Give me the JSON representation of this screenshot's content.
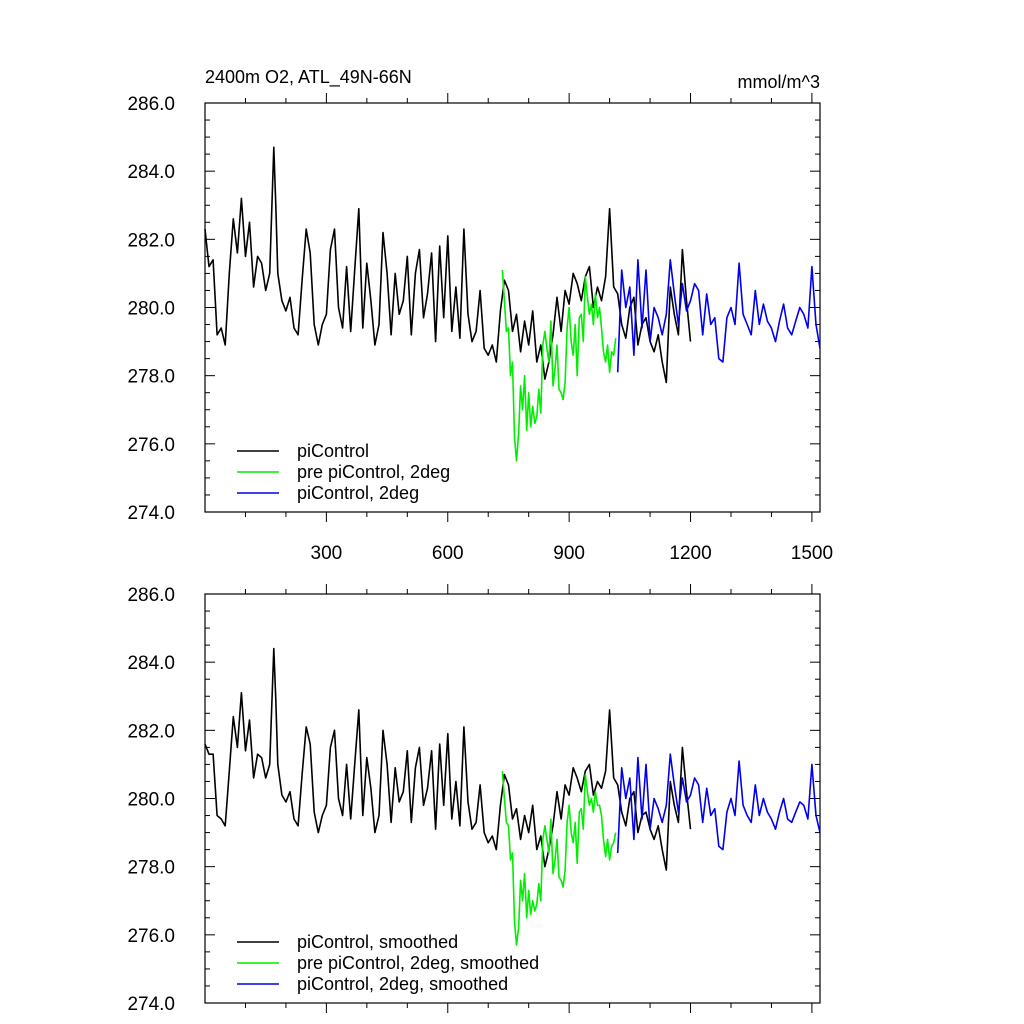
{
  "chart_data": [
    {
      "type": "line",
      "title": "2400m O2, ATL_49N-66N",
      "unit_label": "mmol/m^3",
      "xlabel": "",
      "ylabel": "",
      "xlim": [
        0,
        1520
      ],
      "ylim": [
        274,
        286
      ],
      "x_ticks": [
        300,
        600,
        900,
        1200,
        1500
      ],
      "x_tick_labels": [
        "300",
        "600",
        "900",
        "1200",
        "1500"
      ],
      "y_ticks": [
        274,
        276,
        278,
        280,
        282,
        284,
        286
      ],
      "y_tick_labels": [
        "274.0",
        "276.0",
        "278.0",
        "280.0",
        "282.0",
        "284.0",
        "286.0"
      ],
      "grid": false,
      "legend_position": "bottom-left",
      "series": [
        {
          "name": "piControl",
          "color": "#000000",
          "x": [
            0,
            10,
            20,
            30,
            40,
            50,
            60,
            70,
            80,
            90,
            100,
            110,
            120,
            130,
            140,
            150,
            160,
            170,
            175,
            180,
            190,
            200,
            210,
            220,
            230,
            240,
            250,
            260,
            270,
            280,
            290,
            300,
            310,
            320,
            330,
            340,
            350,
            360,
            370,
            380,
            390,
            400,
            410,
            420,
            430,
            440,
            450,
            460,
            470,
            480,
            490,
            500,
            510,
            520,
            530,
            540,
            550,
            560,
            570,
            580,
            590,
            600,
            610,
            620,
            630,
            640,
            650,
            660,
            670,
            680,
            690,
            700,
            710,
            720,
            730,
            740,
            750,
            760,
            770,
            780,
            790,
            800,
            810,
            820,
            830,
            840,
            850,
            860,
            870,
            880,
            890,
            900,
            910,
            920,
            930,
            940,
            950,
            960,
            970,
            980,
            990,
            1000,
            1010,
            1020,
            1030,
            1040,
            1050,
            1060,
            1070,
            1080,
            1090,
            1100,
            1110,
            1120,
            1130,
            1140,
            1150,
            1160,
            1170,
            1180,
            1190,
            1200
          ],
          "y": [
            282.3,
            281.2,
            281.4,
            279.2,
            279.4,
            278.9,
            281.0,
            282.6,
            281.6,
            283.2,
            281.5,
            282.5,
            280.6,
            281.5,
            281.3,
            280.5,
            281.0,
            284.7,
            283.0,
            281.0,
            280.2,
            279.9,
            280.3,
            279.4,
            279.2,
            280.8,
            282.3,
            281.6,
            279.5,
            278.9,
            279.5,
            279.8,
            281.7,
            282.3,
            280.0,
            279.4,
            281.2,
            279.3,
            281.1,
            282.9,
            279.4,
            281.3,
            280.2,
            278.9,
            279.5,
            282.2,
            281.0,
            279.2,
            281.0,
            279.8,
            280.2,
            281.5,
            279.2,
            281.0,
            281.7,
            279.7,
            280.4,
            281.6,
            279.0,
            281.8,
            279.7,
            282.1,
            279.3,
            280.6,
            279.1,
            282.3,
            279.8,
            279.0,
            279.3,
            280.5,
            278.8,
            278.6,
            278.9,
            278.4,
            279.9,
            280.8,
            280.5,
            279.3,
            279.8,
            278.7,
            279.6,
            278.9,
            279.9,
            278.4,
            278.9,
            277.9,
            278.4,
            279.2,
            280.3,
            279.3,
            280.5,
            280.1,
            281.0,
            280.7,
            280.2,
            280.9,
            281.2,
            280.0,
            280.6,
            280.2,
            280.9,
            282.9,
            280.6,
            280.4,
            279.5,
            279.1,
            280.0,
            280.3,
            278.9,
            279.5,
            279.7,
            279.0,
            278.7,
            279.2,
            278.4,
            277.8,
            280.6,
            279.8,
            279.2,
            281.7,
            280.2,
            279.0
          ],
          "legend_label": "piControl"
        },
        {
          "name": "pre piControl, 2deg",
          "color": "#00ee00",
          "x": [
            735,
            740,
            745,
            750,
            755,
            760,
            765,
            770,
            775,
            780,
            785,
            790,
            795,
            800,
            805,
            810,
            815,
            820,
            825,
            830,
            835,
            840,
            845,
            850,
            855,
            860,
            865,
            870,
            875,
            880,
            885,
            890,
            895,
            900,
            905,
            910,
            915,
            920,
            925,
            930,
            935,
            940,
            945,
            950,
            955,
            960,
            965,
            970,
            975,
            980,
            985,
            990,
            995,
            1000,
            1005,
            1010,
            1015
          ],
          "y": [
            281.1,
            280.2,
            279.3,
            279.4,
            278.0,
            278.4,
            276.2,
            275.5,
            276.3,
            277.7,
            277.0,
            278.0,
            276.4,
            277.5,
            276.5,
            277.1,
            276.6,
            276.8,
            277.6,
            276.9,
            278.9,
            279.3,
            278.8,
            278.4,
            279.6,
            277.7,
            278.2,
            278.9,
            277.6,
            277.5,
            277.3,
            277.8,
            279.4,
            280.0,
            279.0,
            278.6,
            279.5,
            278.0,
            279.7,
            279.8,
            279.0,
            280.9,
            280.3,
            279.8,
            280.1,
            279.5,
            280.4,
            279.7,
            280.0,
            279.4,
            278.7,
            278.4,
            278.9,
            278.1,
            278.7,
            278.6,
            279.1
          ],
          "legend_label": "pre piControl, 2deg"
        },
        {
          "name": "piControl, 2deg",
          "color": "#0000ee",
          "x": [
            1020,
            1030,
            1040,
            1050,
            1060,
            1070,
            1080,
            1090,
            1100,
            1110,
            1120,
            1130,
            1140,
            1150,
            1160,
            1170,
            1180,
            1190,
            1200,
            1210,
            1220,
            1230,
            1240,
            1250,
            1260,
            1270,
            1280,
            1290,
            1300,
            1310,
            1320,
            1330,
            1340,
            1350,
            1360,
            1370,
            1380,
            1390,
            1400,
            1410,
            1420,
            1430,
            1440,
            1450,
            1460,
            1470,
            1480,
            1490,
            1500,
            1510,
            1520
          ],
          "y": [
            278.1,
            281.1,
            280.0,
            280.6,
            278.6,
            281.4,
            279.4,
            281.1,
            279.0,
            280.0,
            279.7,
            279.2,
            279.8,
            281.4,
            280.4,
            279.5,
            280.7,
            279.9,
            280.2,
            280.7,
            280.5,
            279.2,
            280.4,
            279.5,
            279.7,
            278.5,
            278.4,
            279.7,
            280.0,
            279.5,
            281.3,
            279.8,
            279.5,
            279.2,
            280.5,
            279.5,
            280.1,
            279.6,
            279.4,
            279.0,
            279.6,
            280.1,
            279.4,
            279.2,
            279.6,
            280.0,
            279.8,
            279.4,
            281.2,
            279.5,
            278.8
          ],
          "legend_label": "piControl, 2deg"
        }
      ]
    },
    {
      "type": "line",
      "title": "",
      "xlabel": "",
      "ylabel": "",
      "xlim": [
        0,
        1520
      ],
      "ylim": [
        274,
        286
      ],
      "y_ticks": [
        274,
        276,
        278,
        280,
        282,
        284,
        286
      ],
      "y_tick_labels": [
        "274.0",
        "276.0",
        "278.0",
        "280.0",
        "282.0",
        "284.0",
        "286.0"
      ],
      "grid": false,
      "legend_position": "bottom-left",
      "series": [
        {
          "name": "piControl, smoothed",
          "color": "#000000",
          "x": [
            0,
            10,
            20,
            30,
            40,
            50,
            60,
            70,
            80,
            90,
            100,
            110,
            120,
            130,
            140,
            150,
            160,
            170,
            175,
            180,
            190,
            200,
            210,
            220,
            230,
            240,
            250,
            260,
            270,
            280,
            290,
            300,
            310,
            320,
            330,
            340,
            350,
            360,
            370,
            380,
            390,
            400,
            410,
            420,
            430,
            440,
            450,
            460,
            470,
            480,
            490,
            500,
            510,
            520,
            530,
            540,
            550,
            560,
            570,
            580,
            590,
            600,
            610,
            620,
            630,
            640,
            650,
            660,
            670,
            680,
            690,
            700,
            710,
            720,
            730,
            740,
            750,
            760,
            770,
            780,
            790,
            800,
            810,
            820,
            830,
            840,
            850,
            860,
            870,
            880,
            890,
            900,
            910,
            920,
            930,
            940,
            950,
            960,
            970,
            980,
            990,
            1000,
            1010,
            1020,
            1030,
            1040,
            1050,
            1060,
            1070,
            1080,
            1090,
            1100,
            1110,
            1120,
            1130,
            1140,
            1150,
            1160,
            1170,
            1180,
            1190,
            1200
          ],
          "y": [
            281.6,
            281.3,
            281.3,
            279.5,
            279.4,
            279.2,
            280.8,
            282.4,
            281.5,
            283.1,
            281.4,
            282.3,
            280.6,
            281.3,
            281.2,
            280.6,
            281.0,
            284.4,
            282.9,
            281.0,
            280.1,
            279.9,
            280.2,
            279.4,
            279.2,
            280.7,
            282.1,
            281.6,
            279.6,
            279.0,
            279.5,
            279.8,
            281.5,
            282.0,
            280.0,
            279.5,
            281.0,
            279.4,
            281.0,
            282.6,
            279.5,
            281.2,
            280.3,
            279.0,
            279.5,
            282.0,
            281.0,
            279.3,
            280.9,
            279.9,
            280.2,
            281.4,
            279.3,
            280.9,
            281.5,
            279.8,
            280.3,
            281.4,
            279.1,
            281.6,
            279.8,
            281.9,
            279.4,
            280.5,
            279.2,
            282.1,
            279.9,
            279.1,
            279.3,
            280.4,
            279.0,
            278.7,
            278.9,
            278.5,
            279.8,
            280.7,
            280.4,
            279.4,
            279.7,
            278.8,
            279.5,
            279.0,
            279.8,
            278.5,
            278.9,
            278.0,
            278.5,
            279.2,
            280.2,
            279.4,
            280.4,
            280.1,
            280.9,
            280.6,
            280.2,
            280.8,
            281.0,
            280.1,
            280.5,
            280.3,
            280.8,
            282.6,
            280.6,
            280.4,
            279.6,
            279.2,
            280.0,
            280.2,
            279.0,
            279.5,
            279.6,
            279.1,
            278.8,
            279.2,
            278.5,
            277.9,
            280.5,
            279.8,
            279.3,
            281.5,
            280.2,
            279.1
          ],
          "legend_label": "piControl, smoothed"
        },
        {
          "name": "pre piControl, 2deg, smoothed",
          "color": "#00ee00",
          "x": [
            735,
            740,
            745,
            750,
            755,
            760,
            765,
            770,
            775,
            780,
            785,
            790,
            795,
            800,
            805,
            810,
            815,
            820,
            825,
            830,
            835,
            840,
            845,
            850,
            855,
            860,
            865,
            870,
            875,
            880,
            885,
            890,
            895,
            900,
            905,
            910,
            915,
            920,
            925,
            930,
            935,
            940,
            945,
            950,
            955,
            960,
            965,
            970,
            975,
            980,
            985,
            990,
            995,
            1000,
            1005,
            1010,
            1015
          ],
          "y": [
            280.8,
            280.0,
            279.3,
            279.2,
            278.2,
            278.4,
            276.4,
            275.7,
            276.2,
            277.6,
            277.0,
            277.8,
            276.5,
            277.3,
            276.6,
            277.0,
            276.7,
            276.9,
            277.5,
            277.0,
            278.8,
            279.2,
            278.8,
            278.4,
            279.4,
            277.8,
            278.2,
            278.8,
            277.7,
            277.6,
            277.4,
            277.9,
            279.3,
            279.8,
            279.0,
            278.7,
            279.3,
            278.1,
            279.6,
            279.7,
            279.1,
            280.7,
            280.2,
            279.8,
            280.0,
            279.6,
            280.2,
            279.8,
            279.8,
            279.5,
            278.8,
            278.3,
            278.8,
            278.2,
            278.6,
            278.7,
            279.0
          ],
          "legend_label": "pre piControl, 2deg, smoothed"
        },
        {
          "name": "piControl, 2deg, smoothed",
          "color": "#0000ee",
          "x": [
            1020,
            1030,
            1040,
            1050,
            1060,
            1070,
            1080,
            1090,
            1100,
            1110,
            1120,
            1130,
            1140,
            1150,
            1160,
            1170,
            1180,
            1190,
            1200,
            1210,
            1220,
            1230,
            1240,
            1250,
            1260,
            1270,
            1280,
            1290,
            1300,
            1310,
            1320,
            1330,
            1340,
            1350,
            1360,
            1370,
            1380,
            1390,
            1400,
            1410,
            1420,
            1430,
            1440,
            1450,
            1460,
            1470,
            1480,
            1490,
            1500,
            1510,
            1520
          ],
          "y": [
            278.4,
            280.9,
            280.0,
            280.6,
            278.8,
            281.2,
            279.4,
            281.0,
            279.1,
            280.0,
            279.7,
            279.3,
            279.8,
            281.3,
            280.4,
            279.6,
            280.6,
            279.9,
            280.1,
            280.6,
            280.4,
            279.3,
            280.3,
            279.5,
            279.7,
            278.6,
            278.5,
            279.6,
            280.0,
            279.5,
            281.1,
            279.8,
            279.5,
            279.3,
            280.4,
            279.5,
            280.0,
            279.6,
            279.4,
            279.1,
            279.6,
            280.0,
            279.4,
            279.3,
            279.6,
            279.9,
            279.8,
            279.4,
            281.0,
            279.5,
            279.0
          ],
          "legend_label": "piControl, 2deg, smoothed"
        }
      ]
    }
  ]
}
